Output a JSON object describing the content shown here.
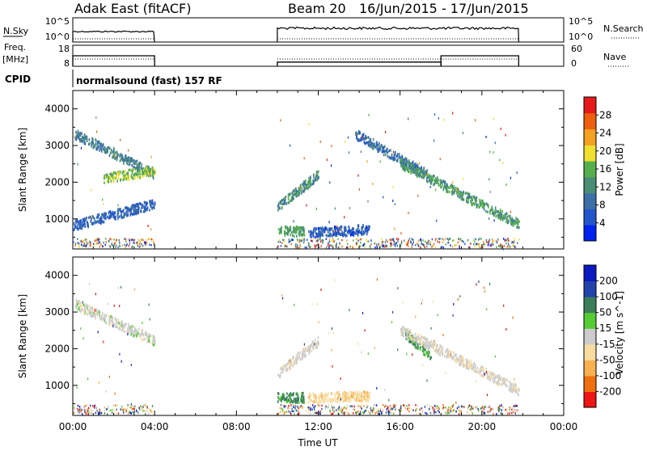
{
  "header": {
    "radar": "Adak East (fitACF)",
    "beam": "Beam 20",
    "date_range": "16/Jun/2015 - 17/Jun/2015"
  },
  "strip_labels": {
    "nsky": "N.Sky",
    "freq_top": "Freq.",
    "freq_unit": "[MHz]",
    "cpid": "CPID",
    "nsearch": "N.Search",
    "nave": "Nave"
  },
  "strip_ticks": {
    "noise_left": [
      "10^5",
      "10^0"
    ],
    "noise_right": [
      "10^5",
      "10^0"
    ],
    "freq_left": [
      "18",
      "8"
    ],
    "nave_right": [
      "60",
      "0"
    ]
  },
  "cpid_text": "normalsound (fast) 157 RF",
  "colors": {
    "power_scale": [
      "#0022ee",
      "#2255cc",
      "#3b6fa8",
      "#4a8e74",
      "#55b04c",
      "#f0e030",
      "#f4a020",
      "#ee6010",
      "#e61a1a"
    ],
    "velocity_scale": [
      "#ee1515",
      "#f07010",
      "#f8b050",
      "#f8dca0",
      "#cccccc",
      "#55cc33",
      "#3b7f5a",
      "#2244aa",
      "#0a1ac0"
    ]
  },
  "chart_data": [
    {
      "type": "heatmap",
      "quantity": "Power",
      "xlabel": "",
      "ylabel": "Slant Range [km]",
      "xlim": [
        0,
        24
      ],
      "ylim": [
        180,
        4500
      ],
      "yticks": [
        1000,
        2000,
        3000,
        4000
      ],
      "colorbar_label": "Power [dB]",
      "colorbar_ticks": [
        "4",
        "8",
        "12",
        "16",
        "20",
        "24",
        "28"
      ],
      "colorbar_range": [
        0,
        32
      ],
      "data_gap_hours": [
        4.0,
        10.0
      ],
      "scatter_features": [
        {
          "t_start": 0.1,
          "t_end": 4.0,
          "range_start": 3300,
          "range_end": 2200,
          "level": 10
        },
        {
          "t_start": 1.5,
          "t_end": 4.0,
          "range_start": 2100,
          "range_end": 2300,
          "level": 17
        },
        {
          "t_start": 0.0,
          "t_end": 4.0,
          "range_start": 800,
          "range_end": 1400,
          "level": 6
        },
        {
          "t_start": 10.0,
          "t_end": 11.3,
          "range_start": 650,
          "range_end": 650,
          "level": 14
        },
        {
          "t_start": 10.0,
          "t_end": 12.0,
          "range_start": 1300,
          "range_end": 2200,
          "level": 12
        },
        {
          "t_start": 11.5,
          "t_end": 14.5,
          "range_start": 600,
          "range_end": 700,
          "level": 5
        },
        {
          "t_start": 13.8,
          "t_end": 17.3,
          "range_start": 3300,
          "range_end": 2200,
          "level": 8
        },
        {
          "t_start": 16.0,
          "t_end": 21.8,
          "range_start": 2500,
          "range_end": 850,
          "level": 13
        }
      ]
    },
    {
      "type": "heatmap",
      "quantity": "Velocity",
      "xlabel": "Time UT",
      "ylabel": "Slant Range [km]",
      "xlim": [
        0,
        24
      ],
      "ylim": [
        180,
        4500
      ],
      "xticks": [
        "00:00",
        "04:00",
        "08:00",
        "12:00",
        "16:00",
        "20:00",
        "00:00"
      ],
      "yticks": [
        1000,
        2000,
        3000,
        4000
      ],
      "colorbar_label": "Velocity [m s^-1]",
      "colorbar_ticks": [
        "-200",
        "-100",
        "-50",
        "-15",
        "15",
        "50",
        "100",
        "200"
      ],
      "data_gap_hours": [
        4.0,
        10.0
      ],
      "scatter_features": [
        {
          "t_start": 0.1,
          "t_end": 4.0,
          "range_start": 3200,
          "range_end": 2200,
          "velocity": 0
        },
        {
          "t_start": 10.0,
          "t_end": 11.3,
          "range_start": 650,
          "range_end": 650,
          "velocity": 60
        },
        {
          "t_start": 11.5,
          "t_end": 14.5,
          "range_start": 650,
          "range_end": 700,
          "velocity": -40
        },
        {
          "t_start": 10.0,
          "t_end": 12.0,
          "range_start": 1300,
          "range_end": 2200,
          "velocity": -5
        },
        {
          "t_start": 16.2,
          "t_end": 17.5,
          "range_start": 2400,
          "range_end": 1800,
          "velocity": 55
        },
        {
          "t_start": 16.0,
          "t_end": 21.8,
          "range_start": 2500,
          "range_end": 850,
          "velocity": -8
        }
      ]
    }
  ],
  "strips": {
    "noise_segments_hours": [
      [
        0.0,
        4.0
      ],
      [
        10.0,
        21.8
      ]
    ],
    "freq_mhz": [
      {
        "t_start": 0.0,
        "t_end": 4.0,
        "value": 13
      },
      {
        "t_start": 10.0,
        "t_end": 18.0,
        "value": 10
      },
      {
        "t_start": 18.0,
        "t_end": 21.8,
        "value": 13
      }
    ]
  }
}
